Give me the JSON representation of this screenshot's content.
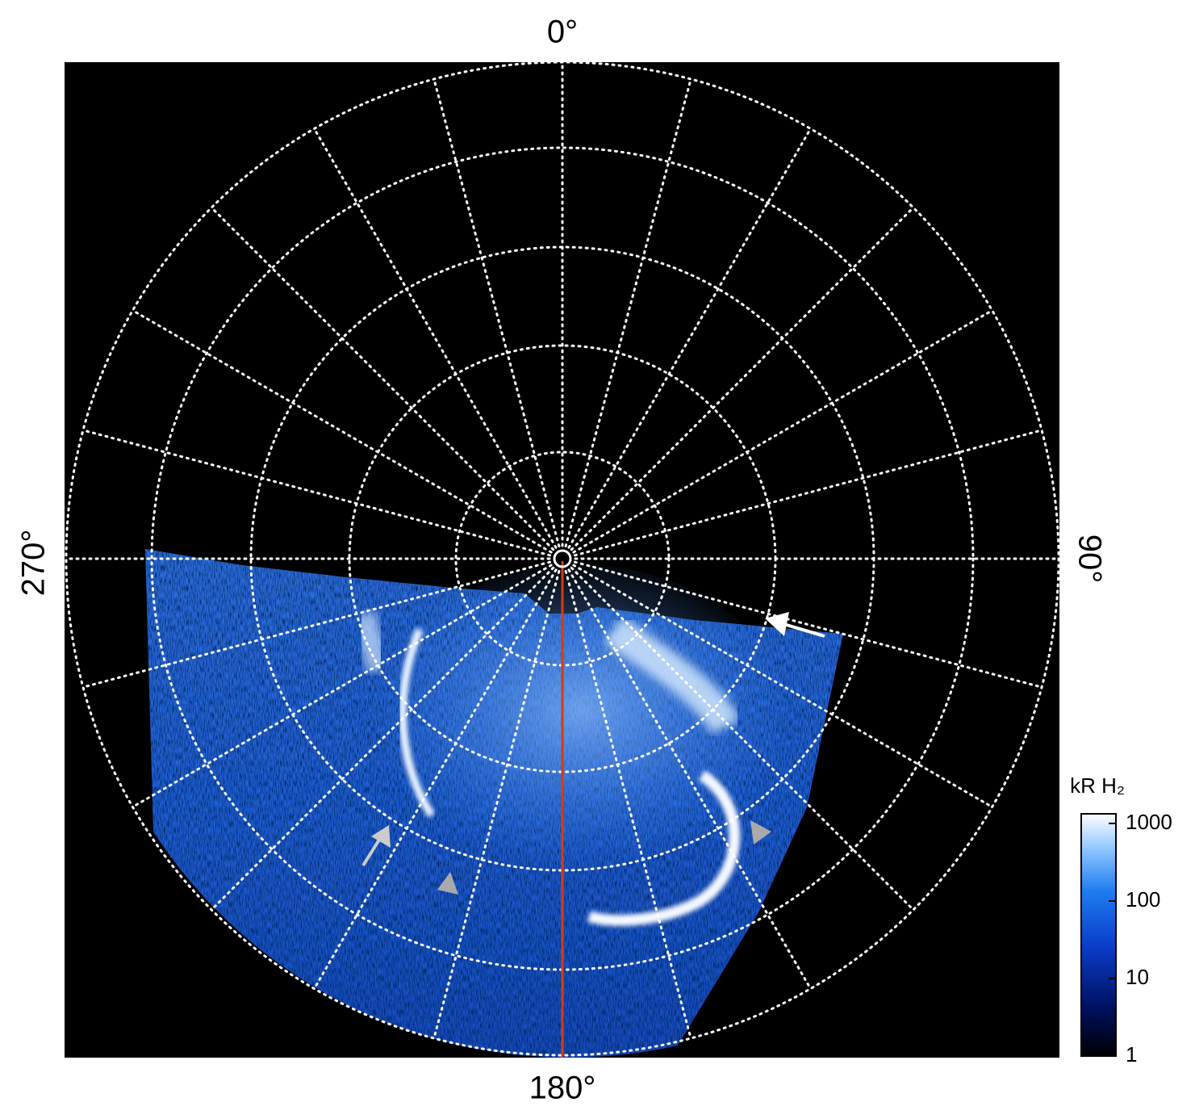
{
  "angle_labels": {
    "top": "0°",
    "right": "90°",
    "bottom": "180°",
    "left": "270°"
  },
  "colorbar": {
    "label": "kR H₂",
    "scale": "log",
    "lim": [
      1,
      1330
    ],
    "ticks": [
      1,
      10,
      100,
      1000
    ]
  }
}
